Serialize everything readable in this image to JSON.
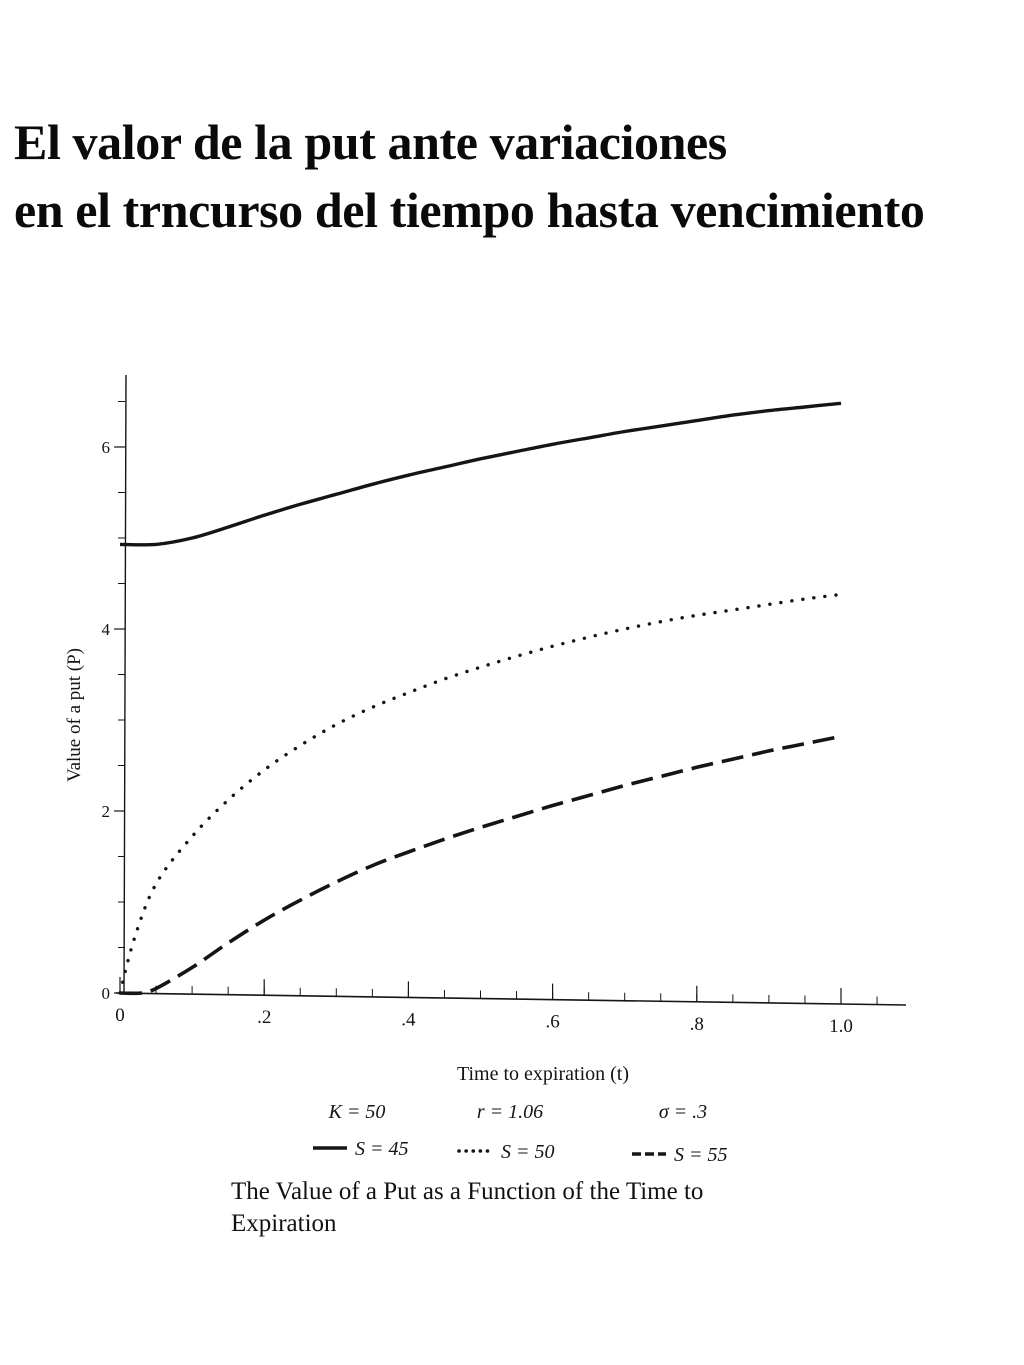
{
  "title": {
    "line1": "El valor de la put ante variaciones",
    "line2": "en el trncurso del tiempo hasta vencimiento"
  },
  "caption": {
    "line1": "The Value of a Put as a Function of the Time to",
    "line2": "Expiration"
  },
  "chart_data": {
    "type": "line",
    "xlabel": "Time to expiration (t)",
    "ylabel": "Value of a put (P)",
    "xlim": [
      0,
      1.07
    ],
    "ylim": [
      0,
      6.7
    ],
    "x_ticks": [
      "0",
      ".2",
      ".4",
      ".6",
      ".8",
      "1.0"
    ],
    "x_tick_values": [
      0,
      0.2,
      0.4,
      0.6,
      0.8,
      1.0
    ],
    "y_ticks": [
      "0",
      "2",
      "4",
      "6"
    ],
    "y_tick_values": [
      0,
      2,
      4,
      6
    ],
    "parameters": [
      "K = 50",
      "r = 1.06",
      "σ = .3"
    ],
    "grid": false,
    "legend_position": "bottom",
    "series": [
      {
        "name": "S = 45",
        "style": "solid",
        "x": [
          0,
          0.05,
          0.1,
          0.15,
          0.2,
          0.25,
          0.3,
          0.35,
          0.4,
          0.45,
          0.5,
          0.55,
          0.6,
          0.65,
          0.7,
          0.75,
          0.8,
          0.85,
          0.9,
          0.95,
          1.0
        ],
        "y": [
          4.93,
          4.93,
          5.0,
          5.12,
          5.25,
          5.37,
          5.48,
          5.59,
          5.69,
          5.78,
          5.87,
          5.95,
          6.03,
          6.1,
          6.17,
          6.23,
          6.29,
          6.35,
          6.4,
          6.44,
          6.48
        ]
      },
      {
        "name": "S = 50",
        "style": "dotted",
        "x": [
          0,
          0.02,
          0.05,
          0.1,
          0.15,
          0.2,
          0.25,
          0.3,
          0.35,
          0.4,
          0.45,
          0.5,
          0.55,
          0.6,
          0.65,
          0.7,
          0.75,
          0.8,
          0.85,
          0.9,
          0.95,
          1.0
        ],
        "y": [
          0,
          0.6,
          1.2,
          1.72,
          2.12,
          2.45,
          2.72,
          2.95,
          3.14,
          3.3,
          3.45,
          3.58,
          3.7,
          3.81,
          3.91,
          4.0,
          4.08,
          4.15,
          4.21,
          4.27,
          4.33,
          4.38
        ]
      },
      {
        "name": "S = 55",
        "style": "dashed",
        "x": [
          0,
          0.03,
          0.05,
          0.1,
          0.15,
          0.2,
          0.25,
          0.3,
          0.35,
          0.4,
          0.45,
          0.5,
          0.55,
          0.6,
          0.65,
          0.7,
          0.75,
          0.8,
          0.85,
          0.9,
          0.95,
          1.0
        ],
        "y": [
          0,
          0.0,
          0.05,
          0.28,
          0.55,
          0.8,
          1.02,
          1.22,
          1.4,
          1.55,
          1.69,
          1.82,
          1.94,
          2.06,
          2.17,
          2.28,
          2.38,
          2.48,
          2.57,
          2.66,
          2.74,
          2.82
        ]
      }
    ]
  }
}
